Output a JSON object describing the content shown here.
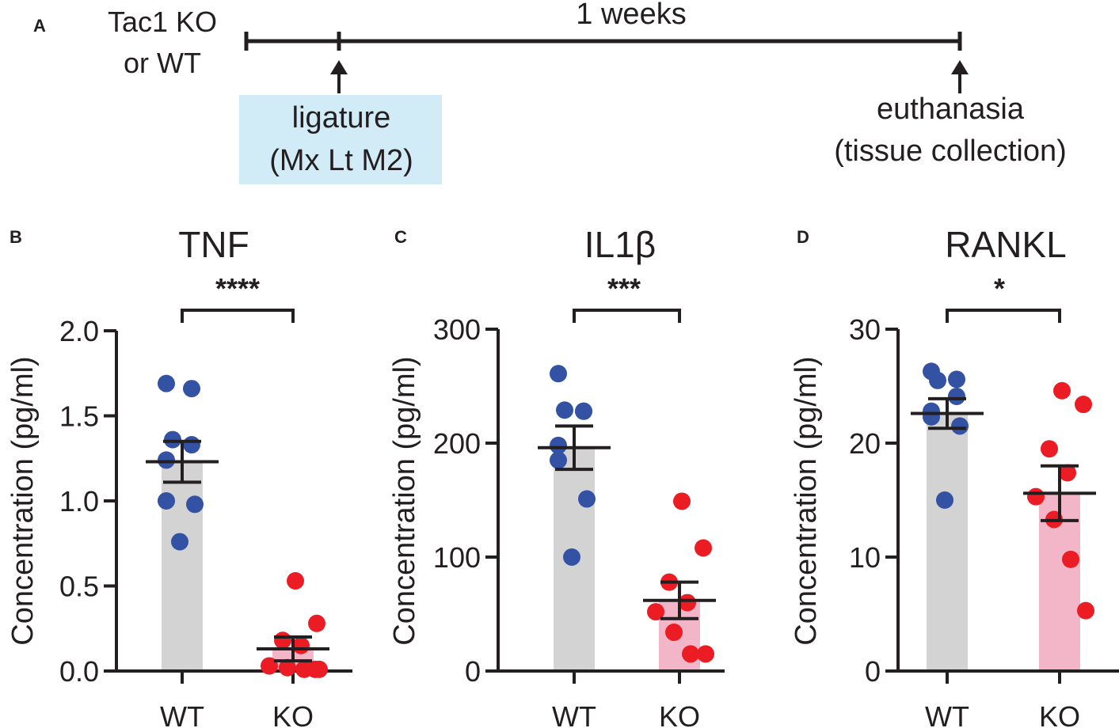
{
  "panel_a": {
    "letter": "A",
    "group_line1": "Tac1 KO",
    "group_line2": "or WT",
    "duration": "1 weeks",
    "step1_line1": "ligature",
    "step1_line2": "(Mx Lt M2)",
    "step2_line1": "euthanasia",
    "step2_line2": "(tissue collection)",
    "box_color": "#d1ebf7"
  },
  "colors": {
    "wt_bar": "#d3d3d3",
    "ko_bar": "#f2b6c8",
    "wt_point": "#3352a4",
    "ko_point": "#ec1c24",
    "ink": "#231f20"
  },
  "chart_data": [
    {
      "letter": "B",
      "type": "bar",
      "title": "TNF",
      "ylabel": "Concentration (pg/ml)",
      "categories": [
        "WT",
        "KO"
      ],
      "ylim": [
        0,
        2.0
      ],
      "yticks": [
        0,
        0.5,
        1.0,
        1.5,
        2.0
      ],
      "ytick_labels": [
        "0.0",
        "0.5",
        "1.0",
        "1.5",
        "2.0"
      ],
      "means": [
        1.23,
        0.13
      ],
      "sem": [
        0.12,
        0.07
      ],
      "points": [
        [
          1.69,
          1.66,
          1.36,
          1.33,
          1.24,
          1.0,
          0.98,
          0.76
        ],
        [
          0.53,
          0.28,
          0.18,
          0.15,
          0.03,
          0.02,
          0.01,
          0.01,
          0.01
        ]
      ],
      "significance": "****"
    },
    {
      "letter": "C",
      "type": "bar",
      "title": "IL1β",
      "ylabel": "Concentration (pg/ml)",
      "categories": [
        "WT",
        "KO"
      ],
      "ylim": [
        0,
        300
      ],
      "yticks": [
        0,
        100,
        200,
        300
      ],
      "ytick_labels": [
        "0",
        "100",
        "200",
        "300"
      ],
      "means": [
        196,
        62
      ],
      "sem": [
        19,
        16
      ],
      "points": [
        [
          261,
          228,
          229,
          228,
          198,
          185,
          151,
          100
        ],
        [
          149,
          108,
          78,
          60,
          52,
          34,
          15,
          15
        ]
      ],
      "significance": "***"
    },
    {
      "letter": "D",
      "type": "bar",
      "title": "RANKL",
      "ylabel": "Concentration  (pg/ml)",
      "categories": [
        "WT",
        "KO"
      ],
      "ylim": [
        0,
        30
      ],
      "yticks": [
        0,
        10,
        20,
        30
      ],
      "ytick_labels": [
        "0",
        "10",
        "20",
        "30"
      ],
      "means": [
        22.6,
        15.6
      ],
      "sem": [
        1.3,
        2.4
      ],
      "points": [
        [
          26.3,
          25.6,
          25.5,
          24.1,
          22.8,
          22.3,
          21.5,
          15.0
        ],
        [
          24.6,
          23.4,
          19.5,
          17.4,
          15.3,
          13.3,
          9.8,
          5.3
        ]
      ],
      "significance": "*"
    }
  ]
}
